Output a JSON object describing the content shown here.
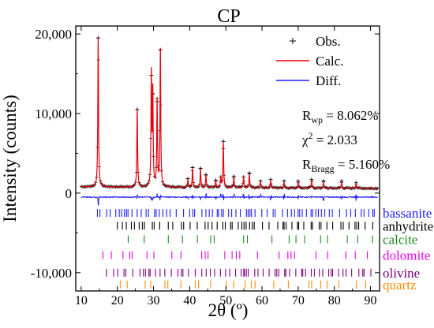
{
  "chart_data": {
    "type": "line",
    "title": "CP",
    "xlabel": "2θ (º)",
    "ylabel": "Intensity (counts)",
    "xlim": [
      8.5,
      92.5
    ],
    "ylim": [
      -12300,
      21000
    ],
    "xticks": [
      10,
      20,
      30,
      40,
      50,
      60,
      70,
      80,
      90
    ],
    "yticks": [
      {
        "value": -10000,
        "label": "-10,000"
      },
      {
        "value": 0,
        "label": "0"
      },
      {
        "value": 10000,
        "label": "10,000"
      },
      {
        "value": 20000,
        "label": "20,000"
      }
    ],
    "grid": false,
    "legend": {
      "position": "top-right",
      "entries": [
        {
          "name": "Obs.",
          "style": "cross",
          "color": "#000000"
        },
        {
          "name": "Calc.",
          "style": "line",
          "color": "#e8000b"
        },
        {
          "name": "Diff.",
          "style": "line",
          "color": "#1f1fff"
        }
      ]
    },
    "annotations": [
      {
        "main": "R",
        "sub": "wp",
        "rest": " = 8.062%"
      },
      {
        "main": "χ",
        "sup": "2",
        "rest": " = 2.033"
      },
      {
        "main": "R",
        "sub": "Bragg",
        "rest": " = 5.160%"
      }
    ],
    "background_level": 800,
    "diff_level": -500,
    "peaks": [
      {
        "x": 14.7,
        "y": 19500
      },
      {
        "x": 25.5,
        "y": 10500
      },
      {
        "x": 29.4,
        "y": 14800
      },
      {
        "x": 29.8,
        "y": 12500
      },
      {
        "x": 31.0,
        "y": 11500
      },
      {
        "x": 31.9,
        "y": 18000
      },
      {
        "x": 39.5,
        "y": 1800
      },
      {
        "x": 40.8,
        "y": 3200
      },
      {
        "x": 43.0,
        "y": 3100
      },
      {
        "x": 44.5,
        "y": 2300
      },
      {
        "x": 47.2,
        "y": 1600
      },
      {
        "x": 48.6,
        "y": 2000
      },
      {
        "x": 49.3,
        "y": 6500
      },
      {
        "x": 52.2,
        "y": 2100
      },
      {
        "x": 54.9,
        "y": 2000
      },
      {
        "x": 56.5,
        "y": 2500
      },
      {
        "x": 59.6,
        "y": 1500
      },
      {
        "x": 62.4,
        "y": 1700
      },
      {
        "x": 66.1,
        "y": 1500
      },
      {
        "x": 70.0,
        "y": 1500
      },
      {
        "x": 73.7,
        "y": 1700
      },
      {
        "x": 77.0,
        "y": 1500
      },
      {
        "x": 82.0,
        "y": 1500
      },
      {
        "x": 86.0,
        "y": 1300
      }
    ],
    "phases": [
      {
        "name": "bassanite",
        "color": "#1f1fff",
        "y": -2500,
        "density": 1.2,
        "from": 14.5
      },
      {
        "name": "anhydrite",
        "color": "#000000",
        "y": -4100,
        "density": 1.0,
        "from": 20.0
      },
      {
        "name": "calcite",
        "color": "#1b8a1b",
        "y": -5800,
        "density": 0.3,
        "from": 23.0
      },
      {
        "name": "dolomite",
        "color": "#ee00ee",
        "y": -7800,
        "density": 0.4,
        "from": 16.0
      },
      {
        "name": "olivine",
        "color": "#800080",
        "y": -10000,
        "density": 1.2,
        "from": 17.0
      },
      {
        "name": "quartz",
        "color": "#ff8c00",
        "y": -11500,
        "density": 0.4,
        "from": 20.8
      }
    ]
  }
}
